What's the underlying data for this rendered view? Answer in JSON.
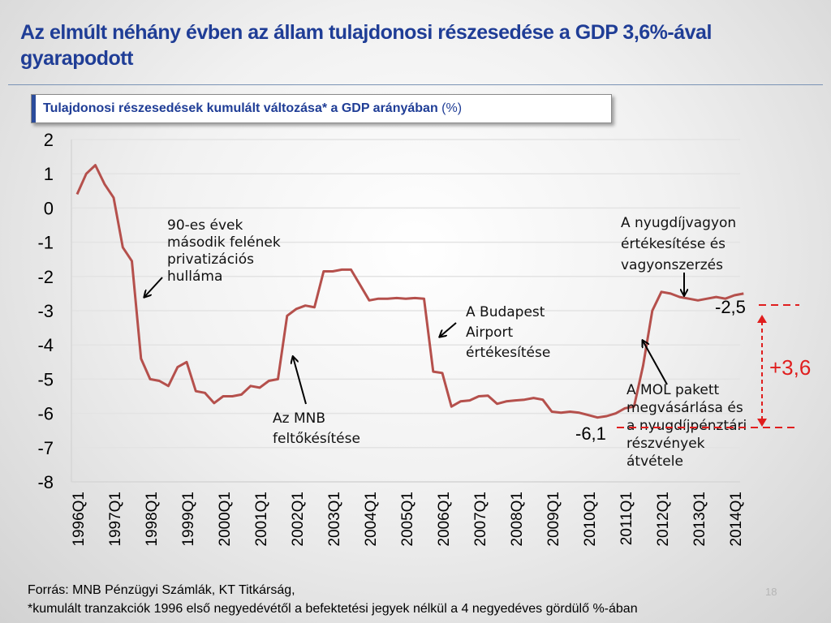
{
  "title": "Az elmúlt néhány évben az állam tulajdonosi részesedése a GDP 3,6%-ával gyarapodott",
  "chart_data": {
    "type": "line",
    "title": "Tulajdonosi részesedések kumulált változása* a GDP arányában",
    "unit": "(%)",
    "ylim": [
      -8,
      2
    ],
    "yticks": [
      "2",
      "1",
      "0",
      "-1",
      "-2",
      "-3",
      "-4",
      "-5",
      "-6",
      "-7",
      "-8"
    ],
    "xticks": [
      "1996Q1",
      "1997Q1",
      "1998Q1",
      "1999Q1",
      "2000Q1",
      "2001Q1",
      "2002Q1",
      "2003Q1",
      "2004Q1",
      "2005Q1",
      "2006Q1",
      "2007Q1",
      "2008Q1",
      "2009Q1",
      "2010Q1",
      "2011Q1",
      "2012Q1",
      "2013Q1",
      "2014Q1"
    ],
    "grid": "horizontal",
    "line_color": "#b5504c",
    "values": [
      0.4,
      1.0,
      1.25,
      0.7,
      0.3,
      -1.15,
      -1.55,
      -4.4,
      -5.0,
      -5.05,
      -5.2,
      -4.65,
      -4.5,
      -5.35,
      -5.4,
      -5.7,
      -5.5,
      -5.5,
      -5.45,
      -5.2,
      -5.25,
      -5.05,
      -5.0,
      -3.15,
      -2.95,
      -2.85,
      -2.9,
      -1.85,
      -1.85,
      -1.8,
      -1.8,
      -2.25,
      -2.7,
      -2.65,
      -2.65,
      -2.63,
      -2.65,
      -2.63,
      -2.65,
      -4.78,
      -4.82,
      -5.8,
      -5.65,
      -5.62,
      -5.5,
      -5.48,
      -5.72,
      -5.65,
      -5.62,
      -5.6,
      -5.55,
      -5.6,
      -5.95,
      -5.98,
      -5.95,
      -5.98,
      -6.05,
      -6.12,
      -6.08,
      -6.0,
      -5.85,
      -5.8,
      -4.6,
      -3.0,
      -2.45,
      -2.5,
      -2.6,
      -2.65,
      -2.7,
      -2.65,
      -2.6,
      -2.65,
      -2.55,
      -2.5
    ],
    "annotations": [
      {
        "id": "privat",
        "lines": [
          "90-es évek",
          "második felének",
          "privatizációs",
          "hulláma"
        ]
      },
      {
        "id": "mnb",
        "lines": [
          "Az MNB",
          "feltőkésítése"
        ]
      },
      {
        "id": "airport",
        "lines": [
          "A Budapest",
          "Airport",
          "értékesítése"
        ]
      },
      {
        "id": "pension",
        "lines": [
          "A nyugdíjvagyon",
          "értékesítése  és",
          "vagyonszerzés"
        ]
      },
      {
        "id": "mol",
        "lines": [
          "A MOL pakett",
          "megvásárlása és",
          "a nyugdíjpénztári",
          "részvények",
          "átvétele"
        ]
      }
    ],
    "value_labels": {
      "end": "-2,5",
      "low": "-6,1",
      "delta": "+3,6"
    }
  },
  "footer": {
    "source": "Forrás: MNB Pénzügyi Számlák, KT Titkárság,",
    "note": "*kumulált tranzakciók 1996 első negyedévétől a befektetési jegyek nélkül a 4 negyedéves gördülő %-ában"
  },
  "page_number": "18"
}
